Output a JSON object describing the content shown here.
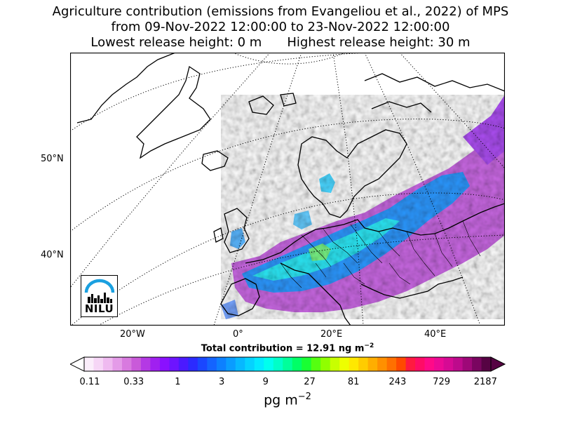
{
  "title": {
    "line1": "Agriculture contribution (emissions from Evangeliou et al., 2022) of MPS",
    "line2": "from 09-Nov-2022 12:00:00 to 23-Nov-2022 12:00:00",
    "line3_left": "Lowest release height: 0 m",
    "line3_right": "Highest release height: 30 m"
  },
  "axes": {
    "lat_labels": [
      "50°N",
      "40°N"
    ],
    "lon_labels": [
      "20°W",
      "0°",
      "20°E",
      "40°E"
    ]
  },
  "total_label": "Total contribution = 12.91 ng m",
  "total_exp": "−2",
  "colorbar": {
    "ticks": [
      "0.11",
      "0.33",
      "1",
      "3",
      "9",
      "27",
      "81",
      "243",
      "729",
      "2187"
    ],
    "unit_label": "pg m",
    "unit_exp": "−2",
    "colors": [
      "#fbeefb",
      "#f6d6f6",
      "#efbaf0",
      "#e49be8",
      "#d87adf",
      "#c95ad9",
      "#b439e4",
      "#a020f0",
      "#8a10ff",
      "#6d14ff",
      "#4b1aff",
      "#2b2bff",
      "#1a47ff",
      "#1464ff",
      "#0d80ff",
      "#0a9cff",
      "#07b8ff",
      "#05d2ff",
      "#02eaff",
      "#00ffee",
      "#00ffc8",
      "#00ff9a",
      "#00ff66",
      "#19ff33",
      "#55ff10",
      "#90ff00",
      "#c8ff00",
      "#eeff00",
      "#ffe800",
      "#ffcc00",
      "#ffae00",
      "#ff9000",
      "#ff7000",
      "#ff4a00",
      "#ff1a40",
      "#ff0c66",
      "#ff0a88",
      "#ec0a95",
      "#d60a94",
      "#bd0a8c",
      "#9e0878",
      "#7a0560",
      "#560343"
    ]
  },
  "logo": {
    "text": "NILU"
  }
}
